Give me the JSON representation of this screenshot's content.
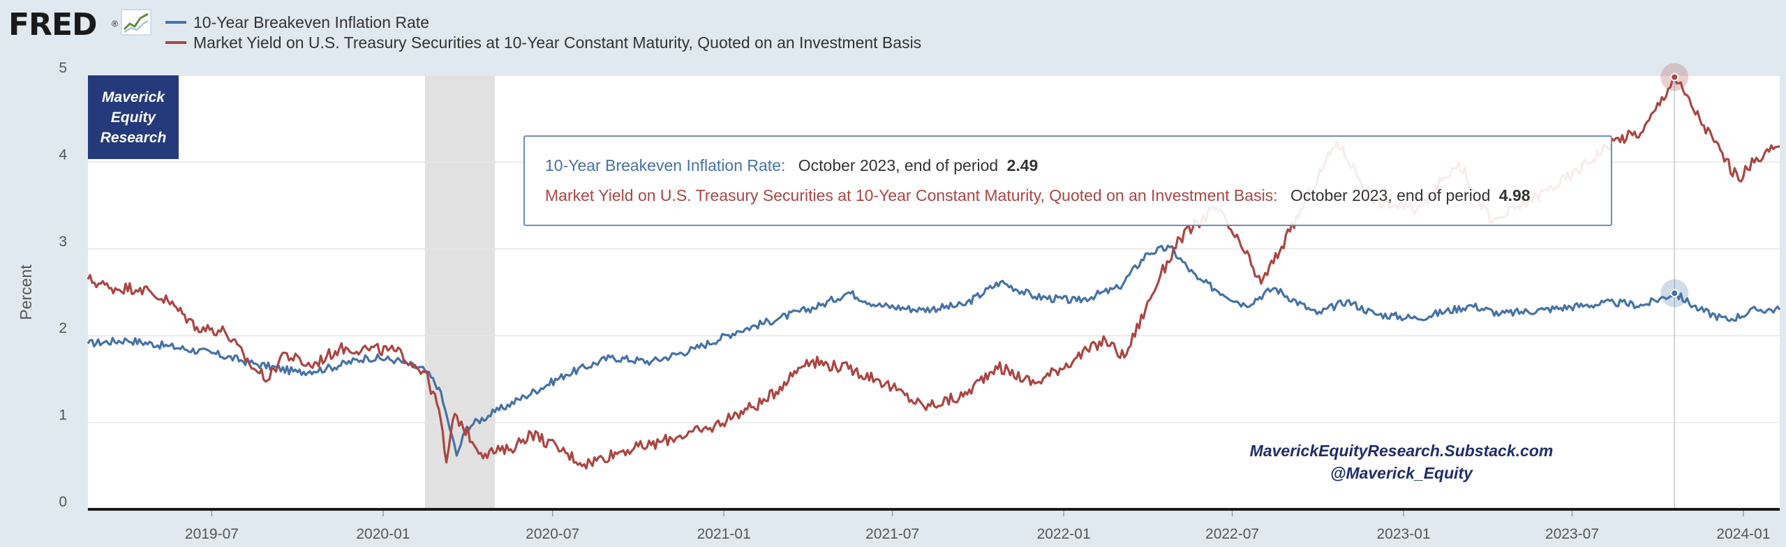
{
  "header": {
    "logo_text": "FRED",
    "logo_mark": "®"
  },
  "legend": [
    {
      "label": "10-Year Breakeven Inflation Rate",
      "color": "#4572a7"
    },
    {
      "label": "Market Yield on U.S. Treasury Securities at 10-Year Constant Maturity, Quoted on an Investment Basis",
      "color": "#aa4643"
    }
  ],
  "badge": {
    "lines": [
      "Maverick",
      "Equity",
      "Research"
    ],
    "color": "#253a7a"
  },
  "watermark": {
    "line1": "MaverickEquityResearch.Substack.com",
    "line2": "@Maverick_Equity"
  },
  "tooltip": {
    "rows": [
      {
        "series": "10-Year Breakeven Inflation Rate:",
        "period": "October 2023, end of period",
        "value": "2.49"
      },
      {
        "series": "Market Yield on U.S. Treasury Securities at 10-Year Constant Maturity, Quoted on an Investment Basis:",
        "period": "October 2023, end of period",
        "value": "4.98"
      }
    ]
  },
  "chart_data": {
    "type": "line",
    "title": "",
    "xlabel": "",
    "ylabel": "Percent",
    "ylim": [
      0,
      5
    ],
    "yticks": [
      "0",
      "1",
      "2",
      "3",
      "4",
      "5"
    ],
    "xlim": [
      "2019-02-18",
      "2024-02-09"
    ],
    "xticks": [
      {
        "date": "2019-07-01",
        "label": "2019-07"
      },
      {
        "date": "2020-01-01",
        "label": "2020-01"
      },
      {
        "date": "2020-07-01",
        "label": "2020-07"
      },
      {
        "date": "2021-01-01",
        "label": "2021-01"
      },
      {
        "date": "2021-07-01",
        "label": "2021-07"
      },
      {
        "date": "2022-01-01",
        "label": "2022-01"
      },
      {
        "date": "2022-07-01",
        "label": "2022-07"
      },
      {
        "date": "2023-01-01",
        "label": "2023-01"
      },
      {
        "date": "2023-07-01",
        "label": "2023-07"
      },
      {
        "date": "2024-01-01",
        "label": "2024-01"
      }
    ],
    "grid": true,
    "legend_position": "top-left",
    "recession_band": [
      "2020-02-15",
      "2020-04-30"
    ],
    "highlight_date": "2023-10-19",
    "series": [
      {
        "name": "10-Year Breakeven Inflation Rate",
        "color": "#4572a7",
        "points": [
          [
            "2019-02-18",
            1.91
          ],
          [
            "2019-04-01",
            1.95
          ],
          [
            "2019-05-15",
            1.88
          ],
          [
            "2019-07-01",
            1.8
          ],
          [
            "2019-08-15",
            1.68
          ],
          [
            "2019-10-01",
            1.58
          ],
          [
            "2019-11-01",
            1.62
          ],
          [
            "2019-12-15",
            1.75
          ],
          [
            "2020-01-15",
            1.72
          ],
          [
            "2020-02-15",
            1.6
          ],
          [
            "2020-03-01",
            1.4
          ],
          [
            "2020-03-10",
            1.05
          ],
          [
            "2020-03-20",
            0.62
          ],
          [
            "2020-03-31",
            0.95
          ],
          [
            "2020-04-30",
            1.12
          ],
          [
            "2020-06-01",
            1.3
          ],
          [
            "2020-07-15",
            1.55
          ],
          [
            "2020-09-01",
            1.75
          ],
          [
            "2020-10-15",
            1.7
          ],
          [
            "2020-12-01",
            1.85
          ],
          [
            "2021-01-15",
            2.05
          ],
          [
            "2021-03-01",
            2.2
          ],
          [
            "2021-04-15",
            2.35
          ],
          [
            "2021-05-15",
            2.5
          ],
          [
            "2021-06-15",
            2.35
          ],
          [
            "2021-08-01",
            2.3
          ],
          [
            "2021-09-15",
            2.35
          ],
          [
            "2021-10-25",
            2.62
          ],
          [
            "2021-12-01",
            2.45
          ],
          [
            "2022-01-15",
            2.4
          ],
          [
            "2022-03-01",
            2.55
          ],
          [
            "2022-04-01",
            2.95
          ],
          [
            "2022-04-25",
            3.02
          ],
          [
            "2022-05-25",
            2.65
          ],
          [
            "2022-07-15",
            2.35
          ],
          [
            "2022-08-15",
            2.55
          ],
          [
            "2022-09-30",
            2.25
          ],
          [
            "2022-11-01",
            2.4
          ],
          [
            "2022-12-01",
            2.25
          ],
          [
            "2023-01-15",
            2.2
          ],
          [
            "2023-03-15",
            2.35
          ],
          [
            "2023-04-15",
            2.25
          ],
          [
            "2023-06-01",
            2.3
          ],
          [
            "2023-07-15",
            2.35
          ],
          [
            "2023-08-15",
            2.38
          ],
          [
            "2023-09-15",
            2.35
          ],
          [
            "2023-10-19",
            2.49
          ],
          [
            "2023-11-15",
            2.3
          ],
          [
            "2023-12-15",
            2.18
          ],
          [
            "2024-01-15",
            2.3
          ],
          [
            "2024-02-09",
            2.3
          ]
        ]
      },
      {
        "name": "Market Yield on U.S. Treasury Securities at 10-Year Constant Maturity, Quoted on an Investment Basis",
        "color": "#aa4643",
        "points": [
          [
            "2019-02-18",
            2.65
          ],
          [
            "2019-03-15",
            2.55
          ],
          [
            "2019-04-15",
            2.55
          ],
          [
            "2019-05-15",
            2.4
          ],
          [
            "2019-06-15",
            2.1
          ],
          [
            "2019-07-15",
            2.05
          ],
          [
            "2019-08-15",
            1.62
          ],
          [
            "2019-09-01",
            1.5
          ],
          [
            "2019-09-15",
            1.8
          ],
          [
            "2019-10-15",
            1.65
          ],
          [
            "2019-11-15",
            1.85
          ],
          [
            "2019-12-15",
            1.85
          ],
          [
            "2020-01-15",
            1.82
          ],
          [
            "2020-02-15",
            1.58
          ],
          [
            "2020-03-01",
            1.15
          ],
          [
            "2020-03-09",
            0.54
          ],
          [
            "2020-03-18",
            1.1
          ],
          [
            "2020-04-15",
            0.65
          ],
          [
            "2020-05-15",
            0.68
          ],
          [
            "2020-06-08",
            0.88
          ],
          [
            "2020-07-15",
            0.65
          ],
          [
            "2020-08-04",
            0.52
          ],
          [
            "2020-09-15",
            0.68
          ],
          [
            "2020-10-15",
            0.74
          ],
          [
            "2020-11-15",
            0.85
          ],
          [
            "2020-12-15",
            0.92
          ],
          [
            "2021-01-15",
            1.1
          ],
          [
            "2021-02-15",
            1.25
          ],
          [
            "2021-03-31",
            1.72
          ],
          [
            "2021-05-15",
            1.62
          ],
          [
            "2021-06-15",
            1.5
          ],
          [
            "2021-08-04",
            1.18
          ],
          [
            "2021-09-15",
            1.3
          ],
          [
            "2021-10-20",
            1.65
          ],
          [
            "2021-12-01",
            1.45
          ],
          [
            "2022-01-15",
            1.75
          ],
          [
            "2022-02-15",
            1.95
          ],
          [
            "2022-03-07",
            1.75
          ],
          [
            "2022-04-15",
            2.7
          ],
          [
            "2022-05-06",
            3.12
          ],
          [
            "2022-06-14",
            3.48
          ],
          [
            "2022-07-15",
            2.95
          ],
          [
            "2022-08-01",
            2.6
          ],
          [
            "2022-09-01",
            3.2
          ],
          [
            "2022-10-21",
            4.24
          ],
          [
            "2022-12-01",
            3.55
          ],
          [
            "2023-01-15",
            3.45
          ],
          [
            "2023-03-01",
            4.0
          ],
          [
            "2023-04-06",
            3.3
          ],
          [
            "2023-05-15",
            3.55
          ],
          [
            "2023-07-01",
            3.85
          ],
          [
            "2023-08-15",
            4.25
          ],
          [
            "2023-09-15",
            4.35
          ],
          [
            "2023-10-19",
            4.98
          ],
          [
            "2023-11-15",
            4.5
          ],
          [
            "2023-12-27",
            3.79
          ],
          [
            "2024-01-15",
            4.05
          ],
          [
            "2024-02-09",
            4.18
          ]
        ]
      }
    ]
  }
}
